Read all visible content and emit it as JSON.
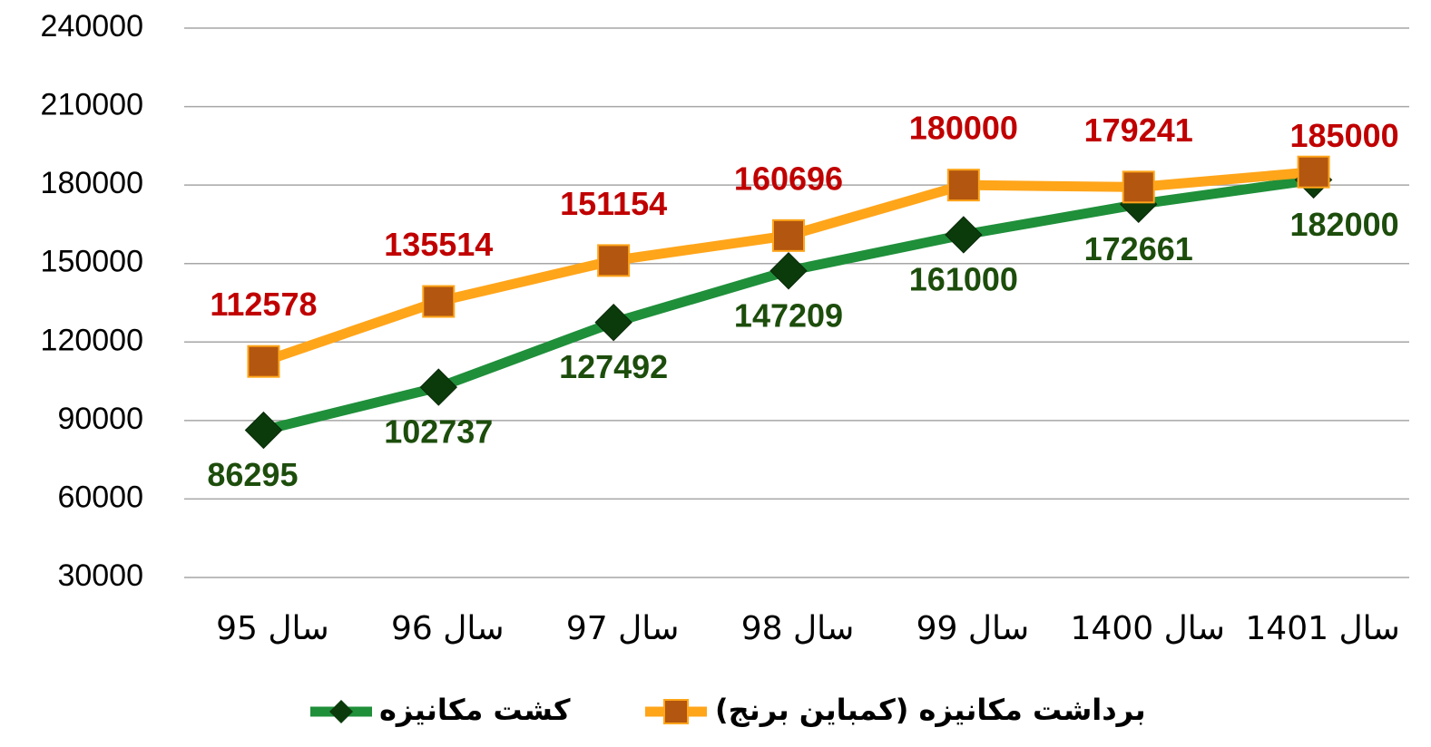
{
  "chart_data": {
    "type": "line",
    "categories": [
      "سال 95",
      "سال 96",
      "سال 97",
      "سال 98",
      "سال 99",
      "سال 1400",
      "سال 1401"
    ],
    "series": [
      {
        "name": "کشت مکانیزه",
        "color": "#1f8f3a",
        "marker_color": "#0b3b0b",
        "label_color": "#1d4d0c",
        "values": [
          86295,
          102737,
          127492,
          147209,
          161000,
          172661,
          182000
        ]
      },
      {
        "name": "برداشت مکانیزه (کمباین برنج)",
        "color": "#ffa51a",
        "marker_color": "#b3560f",
        "label_color": "#c00000",
        "values": [
          112578,
          135514,
          151154,
          160696,
          180000,
          179241,
          185000
        ]
      }
    ],
    "ylim": [
      30000,
      240000
    ],
    "yticks": [
      30000,
      60000,
      90000,
      120000,
      150000,
      180000,
      210000,
      240000
    ],
    "grid": true,
    "legend": "bottom"
  }
}
